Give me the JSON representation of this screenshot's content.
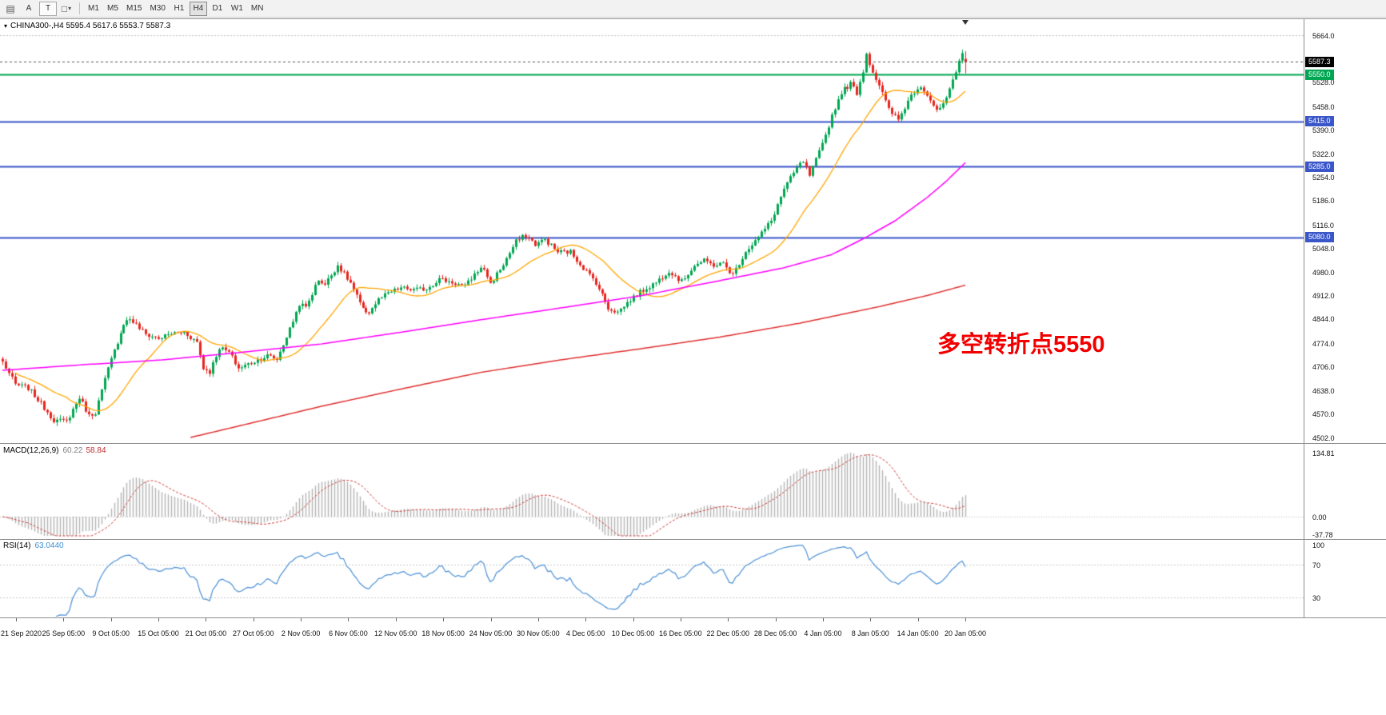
{
  "toolbar": {
    "tool_buttons": [
      {
        "label": "A"
      },
      {
        "label": "T"
      }
    ],
    "timeframes": [
      {
        "label": "M1",
        "active": false
      },
      {
        "label": "M5",
        "active": false
      },
      {
        "label": "M15",
        "active": false
      },
      {
        "label": "M30",
        "active": false
      },
      {
        "label": "H1",
        "active": false
      },
      {
        "label": "H4",
        "active": true
      },
      {
        "label": "D1",
        "active": false
      },
      {
        "label": "W1",
        "active": false
      },
      {
        "label": "MN",
        "active": false
      }
    ]
  },
  "chart": {
    "symbol_label": "CHINA300-,H4  5595.4 5617.6 5553.7 5587.3",
    "annotation": "多空转折点5550",
    "current_price_badge": "5587.3",
    "price_axis_labels": [
      "5664.0",
      "5528.0",
      "5458.0",
      "5390.0",
      "5322.0",
      "5254.0",
      "5186.0",
      "5116.0",
      "5048.0",
      "4980.0",
      "4912.0",
      "4844.0",
      "4774.0",
      "4706.0",
      "4638.0",
      "4570.0",
      "4502.0"
    ],
    "hline_badges": [
      {
        "text": "5550.0",
        "value": 5550,
        "color": "#00A651"
      },
      {
        "text": "5415.0",
        "value": 5415,
        "color": "#3A56C8"
      },
      {
        "text": "5285.0",
        "value": 5285,
        "color": "#3A56C8"
      },
      {
        "text": "5080.0",
        "value": 5080,
        "color": "#3A56C8"
      }
    ]
  },
  "macd_panel": {
    "label_name": "MACD(12,26,9)",
    "label_value": "60.22",
    "label_signal": "58.84",
    "axis_labels": [
      {
        "text": "134.81",
        "value": 134.81
      },
      {
        "text": "0.00",
        "value": 0
      },
      {
        "text": "-37.78",
        "value": -37.78
      }
    ]
  },
  "rsi_panel": {
    "label_name": "RSI(14)",
    "label_value": "63.0440",
    "axis_labels": [
      {
        "text": "100",
        "value": 100
      },
      {
        "text": "70",
        "value": 70
      },
      {
        "text": "30",
        "value": 30
      }
    ],
    "levels": [
      70,
      30
    ]
  },
  "time_axis": {
    "labels": [
      "21 Sep 2020",
      "25 Sep 05:00",
      "9 Oct 05:00",
      "15 Oct 05:00",
      "21 Oct 05:00",
      "27 Oct 05:00",
      "2 Nov 05:00",
      "6 Nov 05:00",
      "12 Nov 05:00",
      "18 Nov 05:00",
      "24 Nov 05:00",
      "30 Nov 05:00",
      "4 Dec 05:00",
      "10 Dec 05:00",
      "16 Dec 05:00",
      "22 Dec 05:00",
      "28 Dec 05:00",
      "4 Jan 05:00",
      "8 Jan 05:00",
      "14 Jan 05:00",
      "20 Jan 05:00"
    ]
  },
  "chart_data": {
    "type": "candlestick",
    "symbol": "CHINA300-",
    "period": "H4",
    "last_ohlc": {
      "open": 5595.4,
      "high": 5617.6,
      "low": 5553.7,
      "close": 5587.3
    },
    "y_range": [
      4502,
      5664
    ],
    "top_gridline": 5664,
    "current_price": 5587.3,
    "hlines": [
      {
        "value": 5550,
        "color": "#00A651",
        "width": 2
      },
      {
        "value": 5415,
        "color": "#3A56C8",
        "width": 2
      },
      {
        "value": 5285,
        "color": "#3A56C8",
        "width": 2
      },
      {
        "value": 5080,
        "color": "#3A56C8",
        "width": 2
      }
    ],
    "candles": {
      "count": 303,
      "noise": 14,
      "wick": 10,
      "anchors": [
        [
          0,
          4720
        ],
        [
          4,
          4655
        ],
        [
          8,
          4645
        ],
        [
          12,
          4600
        ],
        [
          16,
          4552
        ],
        [
          20,
          4548
        ],
        [
          24,
          4618
        ],
        [
          27,
          4565
        ],
        [
          29,
          4575
        ],
        [
          33,
          4700
        ],
        [
          38,
          4832
        ],
        [
          40,
          4845
        ],
        [
          45,
          4800
        ],
        [
          49,
          4788
        ],
        [
          53,
          4802
        ],
        [
          57,
          4806
        ],
        [
          61,
          4778
        ],
        [
          63,
          4702
        ],
        [
          65,
          4692
        ],
        [
          68,
          4762
        ],
        [
          71,
          4748
        ],
        [
          74,
          4702
        ],
        [
          79,
          4722
        ],
        [
          83,
          4738
        ],
        [
          86,
          4728
        ],
        [
          90,
          4815
        ],
        [
          93,
          4888
        ],
        [
          95,
          4878
        ],
        [
          99,
          4958
        ],
        [
          101,
          4944
        ],
        [
          105,
          5000
        ],
        [
          109,
          4948
        ],
        [
          113,
          4870
        ],
        [
          115,
          4864
        ],
        [
          118,
          4900
        ],
        [
          121,
          4918
        ],
        [
          125,
          4934
        ],
        [
          129,
          4928
        ],
        [
          133,
          4932
        ],
        [
          137,
          4960
        ],
        [
          141,
          4950
        ],
        [
          145,
          4938
        ],
        [
          149,
          4985
        ],
        [
          151,
          4990
        ],
        [
          153,
          4946
        ],
        [
          157,
          5002
        ],
        [
          161,
          5068
        ],
        [
          164,
          5086
        ],
        [
          167,
          5060
        ],
        [
          170,
          5074
        ],
        [
          174,
          5038
        ],
        [
          178,
          5038
        ],
        [
          182,
          4992
        ],
        [
          186,
          4950
        ],
        [
          190,
          4876
        ],
        [
          193,
          4864
        ],
        [
          197,
          4900
        ],
        [
          201,
          4928
        ],
        [
          205,
          4950
        ],
        [
          209,
          4984
        ],
        [
          213,
          4952
        ],
        [
          217,
          5000
        ],
        [
          220,
          5012
        ],
        [
          223,
          5000
        ],
        [
          226,
          5004
        ],
        [
          229,
          4972
        ],
        [
          233,
          5040
        ],
        [
          237,
          5080
        ],
        [
          241,
          5128
        ],
        [
          245,
          5220
        ],
        [
          249,
          5280
        ],
        [
          251,
          5300
        ],
        [
          253,
          5258
        ],
        [
          257,
          5348
        ],
        [
          260,
          5432
        ],
        [
          263,
          5500
        ],
        [
          266,
          5524
        ],
        [
          268,
          5498
        ],
        [
          270,
          5562
        ],
        [
          271,
          5610
        ],
        [
          273,
          5558
        ],
        [
          275,
          5520
        ],
        [
          278,
          5448
        ],
        [
          281,
          5420
        ],
        [
          285,
          5492
        ],
        [
          288,
          5520
        ],
        [
          291,
          5478
        ],
        [
          293,
          5442
        ],
        [
          296,
          5478
        ],
        [
          299,
          5556
        ],
        [
          301,
          5618
        ],
        [
          302,
          5587
        ]
      ]
    },
    "moving_averages": {
      "fast": {
        "color": "#FFA500",
        "type": "sma",
        "period": 21
      },
      "medium": {
        "color": "#FF00FF",
        "anchors": [
          [
            0,
            4696
          ],
          [
            25,
            4712
          ],
          [
            50,
            4726
          ],
          [
            75,
            4748
          ],
          [
            100,
            4772
          ],
          [
            125,
            4806
          ],
          [
            150,
            4842
          ],
          [
            175,
            4876
          ],
          [
            200,
            4911
          ],
          [
            225,
            4955
          ],
          [
            245,
            4992
          ],
          [
            260,
            5030
          ],
          [
            270,
            5076
          ],
          [
            280,
            5128
          ],
          [
            290,
            5195
          ],
          [
            296,
            5242
          ],
          [
            302,
            5296
          ]
        ]
      },
      "slow": {
        "color": "#E03030",
        "anchors": [
          [
            59,
            4502
          ],
          [
            80,
            4548
          ],
          [
            100,
            4592
          ],
          [
            125,
            4642
          ],
          [
            150,
            4690
          ],
          [
            175,
            4726
          ],
          [
            200,
            4758
          ],
          [
            225,
            4792
          ],
          [
            250,
            4832
          ],
          [
            275,
            4880
          ],
          [
            290,
            4912
          ],
          [
            302,
            4942
          ]
        ]
      }
    },
    "macd": {
      "fast": 12,
      "slow": 26,
      "signal": 9,
      "scale_max": 134.81,
      "histogram_color": "#b4b4b4",
      "signal_color": "#cc3b3b"
    },
    "rsi": {
      "period": 14,
      "color": "#4a8fd4",
      "levels": [
        70,
        30
      ]
    }
  },
  "colors": {
    "up": "#00A651",
    "down": "#E8251F",
    "grid_dotted": "#bdbdbd",
    "current_price_line": "#555555",
    "level_dotted": "#c8c8c8",
    "badge_current_bg": "#000000"
  }
}
